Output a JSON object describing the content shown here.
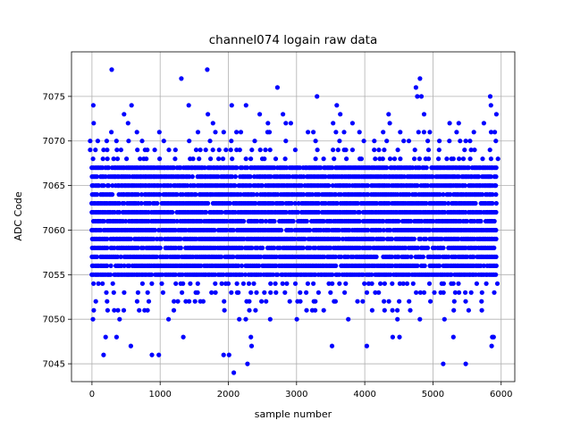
{
  "chart_data": {
    "type": "scatter",
    "title": "channel074 logain raw data",
    "xlabel": "sample number",
    "ylabel": "ADC Code",
    "xlim": [
      -300,
      6200
    ],
    "ylim": [
      7043,
      7080
    ],
    "xticks": [
      0,
      1000,
      2000,
      3000,
      4000,
      5000,
      6000
    ],
    "yticks": [
      7045,
      7050,
      7055,
      7060,
      7065,
      7070,
      7075
    ],
    "grid": true,
    "marker_color": "#0000ff",
    "series": [
      {
        "dense_band": {
          "x_range": [
            0,
            5925
          ],
          "levels": [
            7055,
            7056,
            7057,
            7058,
            7059,
            7060,
            7061,
            7062,
            7063,
            7064,
            7065,
            7066,
            7067
          ],
          "x_step": 25
        },
        "sparse_band": {
          "x_range": [
            0,
            5925
          ],
          "levels": [
            7050,
            7051,
            7052,
            7053,
            7054,
            7068,
            7069,
            7070,
            7071,
            7072
          ],
          "x_step": 75
        },
        "outliers": [
          {
            "x": 20,
            "y": 7074
          },
          {
            "x": 25,
            "y": 7072
          },
          {
            "x": 15,
            "y": 7050
          },
          {
            "x": 170,
            "y": 7046
          },
          {
            "x": 200,
            "y": 7048
          },
          {
            "x": 290,
            "y": 7078
          },
          {
            "x": 360,
            "y": 7048
          },
          {
            "x": 470,
            "y": 7073
          },
          {
            "x": 530,
            "y": 7072
          },
          {
            "x": 580,
            "y": 7074
          },
          {
            "x": 570,
            "y": 7047
          },
          {
            "x": 880,
            "y": 7046
          },
          {
            "x": 980,
            "y": 7046
          },
          {
            "x": 1310,
            "y": 7077
          },
          {
            "x": 1340,
            "y": 7048
          },
          {
            "x": 1420,
            "y": 7074
          },
          {
            "x": 1690,
            "y": 7078
          },
          {
            "x": 1700,
            "y": 7073
          },
          {
            "x": 1930,
            "y": 7046
          },
          {
            "x": 2010,
            "y": 7046
          },
          {
            "x": 2050,
            "y": 7074
          },
          {
            "x": 2080,
            "y": 7044
          },
          {
            "x": 2260,
            "y": 7074
          },
          {
            "x": 2280,
            "y": 7045
          },
          {
            "x": 2340,
            "y": 7047
          },
          {
            "x": 2330,
            "y": 7048
          },
          {
            "x": 2460,
            "y": 7073
          },
          {
            "x": 2720,
            "y": 7076
          },
          {
            "x": 2800,
            "y": 7073
          },
          {
            "x": 3300,
            "y": 7075
          },
          {
            "x": 3520,
            "y": 7047
          },
          {
            "x": 3590,
            "y": 7074
          },
          {
            "x": 3640,
            "y": 7073
          },
          {
            "x": 4030,
            "y": 7047
          },
          {
            "x": 4350,
            "y": 7073
          },
          {
            "x": 4410,
            "y": 7048
          },
          {
            "x": 4510,
            "y": 7048
          },
          {
            "x": 4750,
            "y": 7076
          },
          {
            "x": 4770,
            "y": 7075
          },
          {
            "x": 4810,
            "y": 7077
          },
          {
            "x": 4830,
            "y": 7075
          },
          {
            "x": 4870,
            "y": 7073
          },
          {
            "x": 5150,
            "y": 7045
          },
          {
            "x": 5300,
            "y": 7048
          },
          {
            "x": 5480,
            "y": 7045
          },
          {
            "x": 5840,
            "y": 7075
          },
          {
            "x": 5850,
            "y": 7074
          },
          {
            "x": 5870,
            "y": 7048
          },
          {
            "x": 5860,
            "y": 7047
          },
          {
            "x": 5890,
            "y": 7048
          },
          {
            "x": 5930,
            "y": 7073
          }
        ]
      }
    ]
  }
}
